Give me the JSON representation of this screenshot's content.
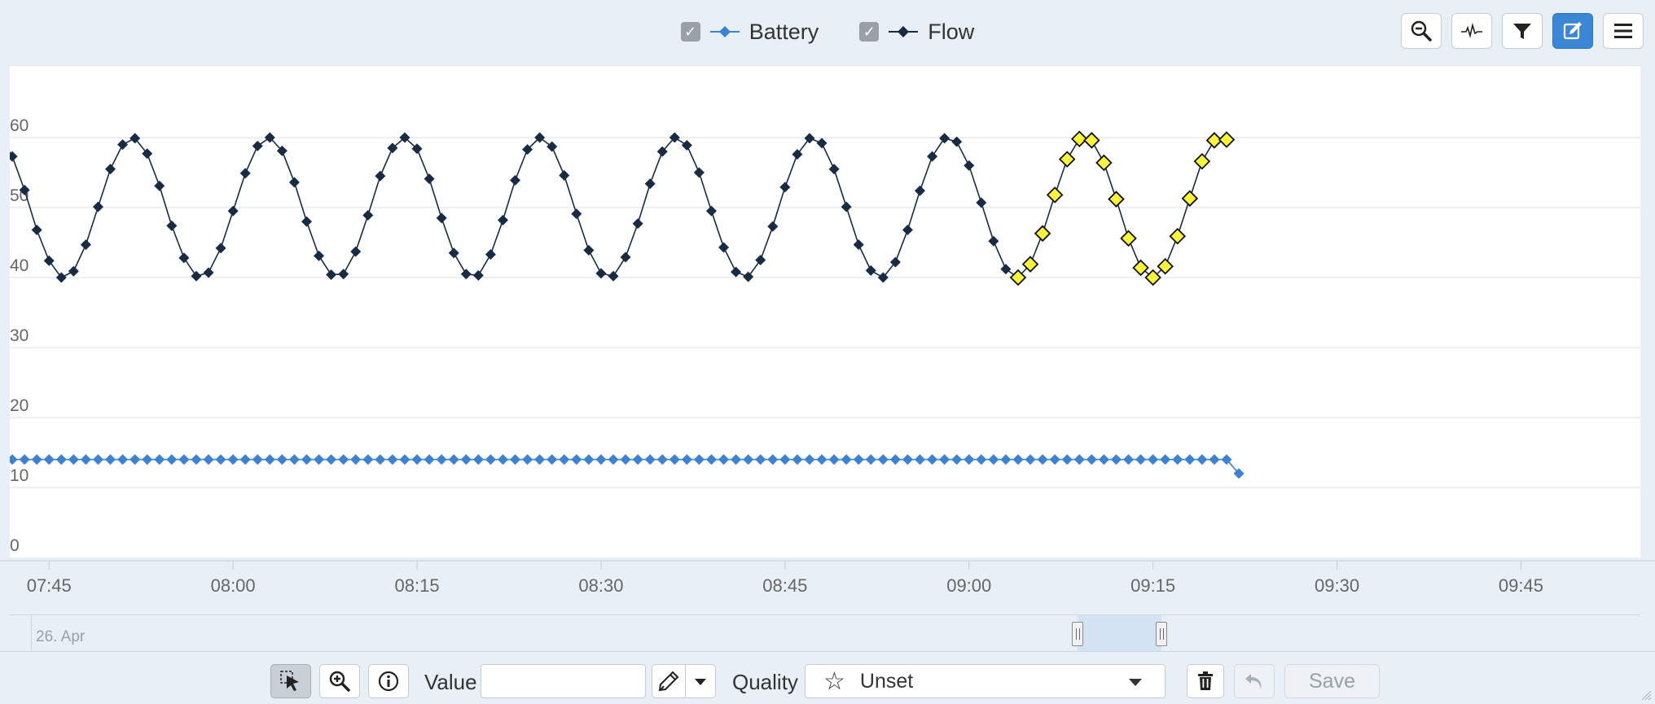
{
  "legend": {
    "battery_label": "Battery",
    "flow_label": "Flow",
    "battery_color": "#3b82d4",
    "flow_color": "#172b45",
    "check_glyph": "✓"
  },
  "toolbar": {
    "icons": [
      "zoom-out-icon",
      "waveform-icon",
      "filter-icon",
      "edit-icon",
      "menu-icon"
    ]
  },
  "chart_data": {
    "type": "line",
    "x_axis": {
      "type": "time",
      "range": [
        "07:41",
        "09:53"
      ],
      "tick_labels": [
        "07:45",
        "08:00",
        "08:15",
        "08:30",
        "08:45",
        "09:00",
        "09:15",
        "09:30",
        "09:45"
      ]
    },
    "y_axis": {
      "range": [
        0,
        60
      ],
      "tick_labels": [
        "0",
        "10",
        "20",
        "30",
        "40",
        "50",
        "60"
      ]
    },
    "grid": true,
    "legend_position": "top-center",
    "series": [
      {
        "name": "Battery",
        "color": "#3b82d4",
        "marker": "diamond",
        "x_start": "07:41",
        "x_step_minutes": 1,
        "values": [
          14,
          14,
          14,
          14,
          14,
          14,
          14,
          14,
          14,
          14,
          14,
          14,
          14,
          14,
          14,
          14,
          14,
          14,
          14,
          14,
          14,
          14,
          14,
          14,
          14,
          14,
          14,
          14,
          14,
          14,
          14,
          14,
          14,
          14,
          14,
          14,
          14,
          14,
          14,
          14,
          14,
          14,
          14,
          14,
          14,
          14,
          14,
          14,
          14,
          14,
          14,
          14,
          14,
          14,
          14,
          14,
          14,
          14,
          14,
          14,
          14,
          14,
          14,
          14,
          14,
          14,
          14,
          14,
          14,
          14,
          14,
          14,
          14,
          14,
          14,
          14,
          14,
          14,
          14,
          14,
          14,
          14,
          14,
          14,
          14,
          14,
          14,
          14,
          14,
          14,
          14,
          14,
          14,
          14,
          14,
          14,
          14,
          14,
          14,
          14,
          14,
          12
        ]
      },
      {
        "name": "Flow",
        "color": "#172b45",
        "marker": "diamond",
        "x_start": "07:41",
        "x_step_minutes": 1,
        "values": [
          60.0,
          57.3,
          52.5,
          46.8,
          42.4,
          40.0,
          40.9,
          44.7,
          50.1,
          55.5,
          59.0,
          59.9,
          57.7,
          53.1,
          47.4,
          42.8,
          40.2,
          40.7,
          44.2,
          49.5,
          54.9,
          58.8,
          60.0,
          58.1,
          53.6,
          48.0,
          43.1,
          40.4,
          40.5,
          43.7,
          48.9,
          54.5,
          58.5,
          60.0,
          58.4,
          54.1,
          48.5,
          43.5,
          40.5,
          40.3,
          43.3,
          48.2,
          53.9,
          58.3,
          60.0,
          58.7,
          54.6,
          49.1,
          43.9,
          40.6,
          40.2,
          42.9,
          47.7,
          53.4,
          58.0,
          60.0,
          58.9,
          55.0,
          49.5,
          44.3,
          40.8,
          40.1,
          42.5,
          47.3,
          52.9,
          57.6,
          59.9,
          59.2,
          55.5,
          50.1,
          44.7,
          41.0,
          40.0,
          42.2,
          46.8,
          52.4,
          57.3,
          59.9,
          59.4,
          56.0,
          50.7,
          45.2,
          41.2,
          40.0,
          41.9,
          46.3,
          51.8,
          56.9,
          59.8,
          59.6,
          56.4,
          51.2,
          45.6,
          41.4,
          40.0,
          41.6,
          45.9,
          51.3,
          56.6,
          59.6,
          59.7
        ]
      }
    ],
    "selected_points": {
      "series": "Flow",
      "from_index": 83,
      "to_index": 101,
      "color": "#fbf53a"
    }
  },
  "navigator": {
    "date_label": "26. Apr"
  },
  "bottom": {
    "value_label": "Value",
    "value_input": "",
    "quality_label": "Quality",
    "quality_value": "Unset",
    "save_label": "Save"
  }
}
